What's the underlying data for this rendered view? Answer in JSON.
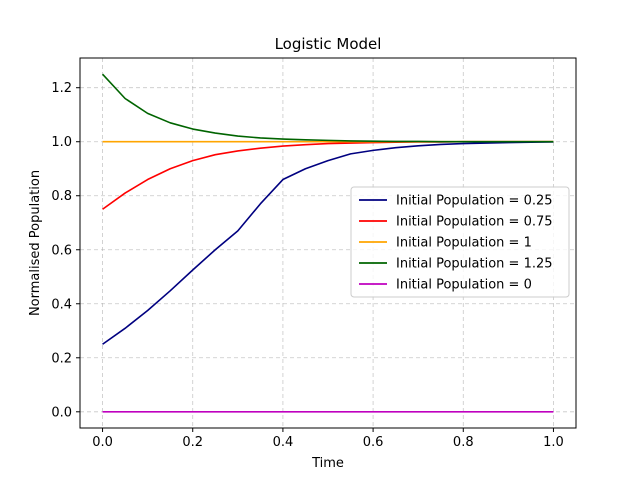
{
  "chart_data": {
    "type": "line",
    "title": "Logistic Model",
    "xlabel": "Time",
    "ylabel": "Normalised Population",
    "xlim": [
      -0.05,
      1.05
    ],
    "ylim": [
      -0.06,
      1.31
    ],
    "xticks": [
      0.0,
      0.2,
      0.4,
      0.6,
      0.8,
      1.0
    ],
    "yticks": [
      0.0,
      0.2,
      0.4,
      0.6,
      0.8,
      1.0,
      1.2
    ],
    "xtick_labels": [
      "0.0",
      "0.2",
      "0.4",
      "0.6",
      "0.8",
      "1.0"
    ],
    "ytick_labels": [
      "0.0",
      "0.2",
      "0.4",
      "0.6",
      "0.8",
      "1.0",
      "1.2"
    ],
    "grid": true,
    "legend_position": "center-right",
    "series": [
      {
        "name": "Initial Population = 0.25",
        "color": "#000080",
        "x": [
          0,
          0.05,
          0.1,
          0.15,
          0.2,
          0.25,
          0.3,
          0.35,
          0.4,
          0.45,
          0.5,
          0.55,
          0.6,
          0.65,
          0.7,
          0.75,
          0.8,
          0.85,
          0.9,
          0.95,
          1.0
        ],
        "y": [
          0.25,
          0.309,
          0.375,
          0.448,
          0.525,
          0.6,
          0.67,
          0.77,
          0.86,
          0.9,
          0.93,
          0.955,
          0.968,
          0.978,
          0.985,
          0.99,
          0.993,
          0.995,
          0.997,
          0.998,
          0.999
        ]
      },
      {
        "name": "Initial Population = 0.75",
        "color": "#ff0000",
        "x": [
          0,
          0.05,
          0.1,
          0.15,
          0.2,
          0.25,
          0.3,
          0.35,
          0.4,
          0.45,
          0.5,
          0.55,
          0.6,
          0.65,
          0.7,
          0.75,
          0.8,
          0.85,
          0.9,
          0.95,
          1.0
        ],
        "y": [
          0.75,
          0.81,
          0.86,
          0.9,
          0.93,
          0.952,
          0.966,
          0.976,
          0.984,
          0.989,
          0.993,
          0.995,
          0.997,
          0.998,
          0.999,
          0.999,
          1.0,
          1.0,
          1.0,
          1.0,
          1.0
        ]
      },
      {
        "name": "Initial Population = 1",
        "color": "#ffa500",
        "x": [
          0,
          1.0
        ],
        "y": [
          1.0,
          1.0
        ]
      },
      {
        "name": "Initial Population = 1.25",
        "color": "#006400",
        "x": [
          0,
          0.05,
          0.1,
          0.15,
          0.2,
          0.25,
          0.3,
          0.35,
          0.4,
          0.45,
          0.5,
          0.55,
          0.6,
          0.65,
          0.7,
          0.75,
          0.8,
          0.85,
          0.9,
          0.95,
          1.0
        ],
        "y": [
          1.25,
          1.16,
          1.105,
          1.07,
          1.047,
          1.032,
          1.021,
          1.014,
          1.01,
          1.007,
          1.005,
          1.003,
          1.002,
          1.001,
          1.001,
          1.0,
          1.0,
          1.0,
          1.0,
          1.0,
          1.0
        ]
      },
      {
        "name": "Initial Population = 0",
        "color": "#bf00bf",
        "x": [
          0,
          1.0
        ],
        "y": [
          0.0,
          0.0
        ]
      }
    ]
  }
}
